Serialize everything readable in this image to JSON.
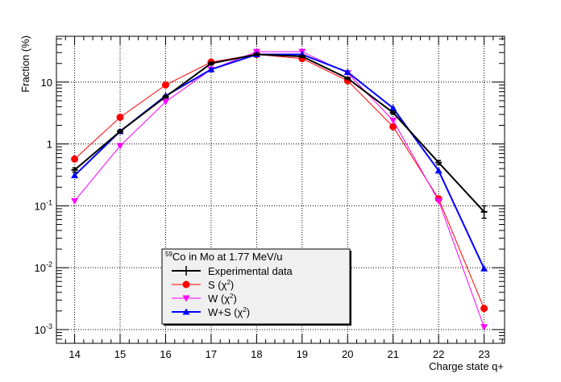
{
  "chart_data": {
    "type": "line",
    "y_scale": "log",
    "xlabel": "Charge state q+",
    "ylabel": "Fraction (%)",
    "xlim": [
      13.6,
      23.45
    ],
    "ylim": [
      0.0006,
      55
    ],
    "x_ticks": [
      14,
      15,
      16,
      17,
      18,
      19,
      20,
      21,
      22,
      23
    ],
    "x_tick_labels": [
      "14",
      "15",
      "16",
      "17",
      "18",
      "19",
      "20",
      "21",
      "22",
      "23"
    ],
    "y_ticks": [
      {
        "value": 0.001,
        "base": "10",
        "exp": "-3"
      },
      {
        "value": 0.01,
        "base": "10",
        "exp": "-2"
      },
      {
        "value": 0.1,
        "base": "10",
        "exp": "-1"
      },
      {
        "value": 1,
        "base": "1",
        "exp": ""
      },
      {
        "value": 10,
        "base": "10",
        "exp": ""
      }
    ],
    "grid": true,
    "legend": {
      "title": {
        "super": "59",
        "text": "Co in Mo at 1.77 MeV/u"
      },
      "position": "bottom-center",
      "entries": [
        {
          "series": 0,
          "label": "Experimental data"
        },
        {
          "series": 1,
          "label": "S (χ",
          "sup": "2",
          "after": ")"
        },
        {
          "series": 2,
          "label": "W (χ",
          "sup": "2",
          "after": ")"
        },
        {
          "series": 3,
          "label": "W+S (χ",
          "sup": "2",
          "after": ")"
        }
      ]
    },
    "series": [
      {
        "name": "Experimental data",
        "color": "#000000",
        "marker": "cross",
        "width": 2,
        "x": [
          14,
          15,
          16,
          17,
          18,
          19,
          20,
          21,
          22,
          23
        ],
        "values": [
          0.38,
          1.6,
          5.8,
          20,
          28,
          26,
          11.5,
          3.2,
          0.5,
          0.08
        ],
        "err_low": [
          0.35,
          1.5,
          5.5,
          19,
          27,
          25,
          11,
          3.0,
          0.46,
          0.063
        ],
        "err_high": [
          0.41,
          1.7,
          6.1,
          21,
          29,
          27,
          12,
          3.4,
          0.54,
          0.1
        ]
      },
      {
        "name": "S (χ2)",
        "color": "#ff0000",
        "marker": "circle",
        "width": 1,
        "x": [
          14,
          15,
          16,
          17,
          18,
          19,
          20,
          21,
          22,
          23
        ],
        "values": [
          0.57,
          2.7,
          9,
          21,
          28,
          24,
          10.5,
          1.9,
          0.13,
          0.0022
        ]
      },
      {
        "name": "W (χ2)",
        "color": "#ff00ff",
        "marker": "triangle-down",
        "width": 1,
        "x": [
          14,
          15,
          16,
          17,
          18,
          19,
          20,
          21,
          22,
          23
        ],
        "values": [
          0.12,
          0.93,
          4.8,
          16,
          31,
          31,
          14,
          2.4,
          0.12,
          0.0011
        ]
      },
      {
        "name": "W+S (χ2)",
        "color": "#0000ff",
        "marker": "triangle-up",
        "width": 2,
        "x": [
          14,
          15,
          16,
          17,
          18,
          19,
          20,
          21,
          22,
          23
        ],
        "values": [
          0.31,
          1.6,
          6,
          16,
          28,
          28,
          14.5,
          3.8,
          0.37,
          0.0097
        ]
      }
    ]
  }
}
